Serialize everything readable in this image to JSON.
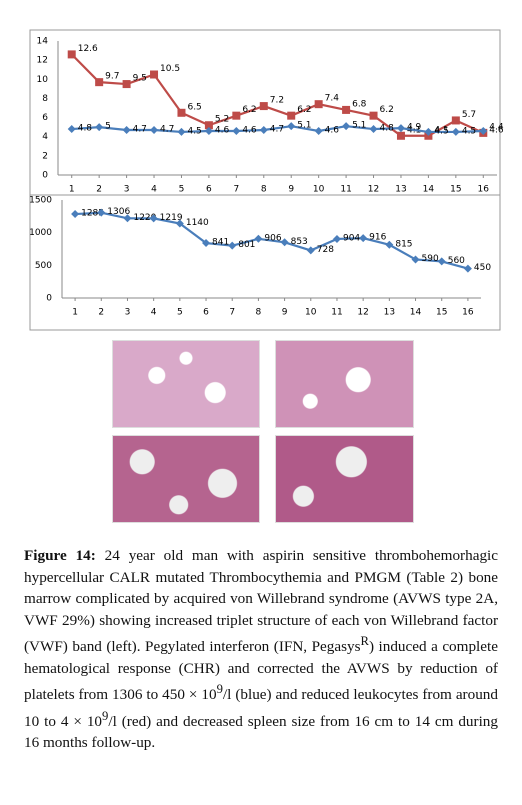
{
  "chart_data": [
    {
      "type": "line",
      "x": [
        1,
        2,
        3,
        4,
        5,
        6,
        7,
        8,
        9,
        10,
        11,
        12,
        13,
        14,
        15,
        16
      ],
      "xlim": [
        0.5,
        16.5
      ],
      "xticks": [
        1,
        2,
        3,
        4,
        5,
        6,
        7,
        8,
        9,
        10,
        11,
        12,
        13,
        14,
        15,
        16
      ],
      "ylim": [
        0,
        14
      ],
      "yticks": [
        0,
        2,
        4,
        6,
        8,
        10,
        12,
        14
      ],
      "grid": false,
      "series": [
        {
          "color": "#be4b48",
          "marker": "square",
          "values": [
            12.6,
            9.7,
            9.5,
            10.5,
            6.5,
            5.2,
            6.2,
            7.2,
            6.2,
            7.4,
            6.8,
            6.2,
            4.1,
            4.1,
            5.7,
            4.4
          ]
        },
        {
          "color": "#4a7ebb",
          "marker": "diamond",
          "values": [
            4.8,
            5,
            4.7,
            4.7,
            4.5,
            4.6,
            4.6,
            4.7,
            5.1,
            4.6,
            5.1,
            4.8,
            4.9,
            4.5,
            4.5,
            4.6
          ]
        }
      ]
    },
    {
      "type": "line",
      "x": [
        1,
        2,
        3,
        4,
        5,
        6,
        7,
        8,
        9,
        10,
        11,
        12,
        13,
        14,
        15,
        16
      ],
      "xlim": [
        0.5,
        16.5
      ],
      "xticks": [
        1,
        2,
        3,
        4,
        5,
        6,
        7,
        8,
        9,
        10,
        11,
        12,
        13,
        14,
        15,
        16
      ],
      "ylim": [
        0,
        1500
      ],
      "yticks": [
        0,
        500,
        1000,
        1500
      ],
      "grid": false,
      "series": [
        {
          "color": "#4a7ebb",
          "marker": "diamond",
          "values": [
            1285,
            1306,
            1220,
            1219,
            1140,
            841,
            801,
            906,
            853,
            728,
            904,
            916,
            815,
            590,
            560,
            450
          ]
        }
      ]
    }
  ],
  "caption": {
    "label": "Figure 14:",
    "segments": [
      "24 year old man with aspirin sensitive thrombohemorhagic hypercellular CALR mutated Thrombocythemia and PMGM (Table 2) bone marrow complicated by acquired von Willebrand syndrome (AVWS type 2A, VWF 29%) showing increased triplet structure of each von Willebrand factor (VWF) band (left). Pegylated interferon (IFN, Pegasys",
      "R",
      ") induced a complete hematological response (CHR) and corrected the AVWS by reduction of platelets from 1306 to 450 × 10",
      "9",
      "/l (blue) and reduced leukocytes from around 10 to 4 × 10",
      "9",
      "/l (red) and decreased spleen size from 16 cm to 14 cm during 16 months follow-up."
    ]
  }
}
